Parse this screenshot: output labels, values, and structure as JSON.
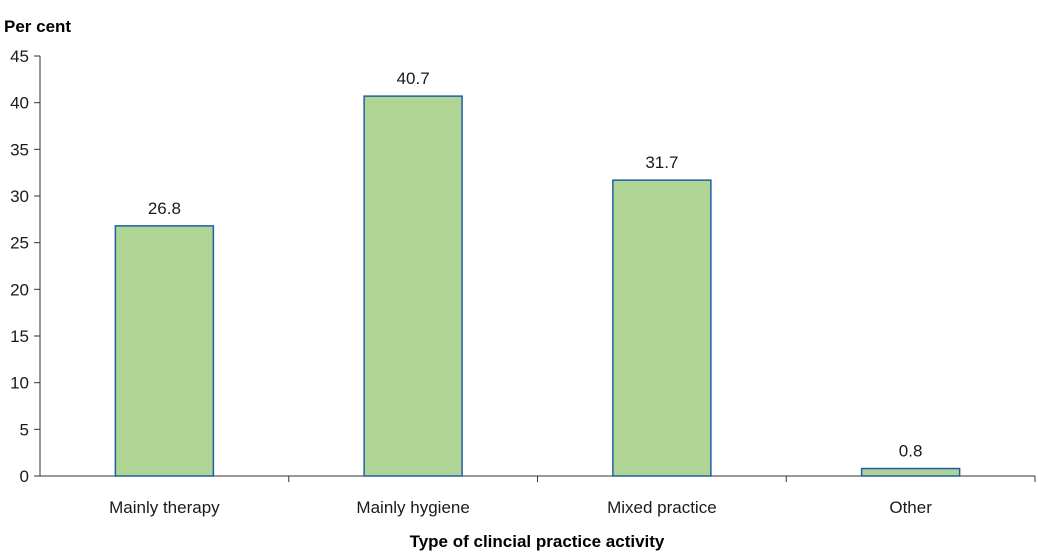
{
  "chart_data": {
    "type": "bar",
    "title": "",
    "ylabel": "Per cent",
    "xlabel": "Type of clincial practice activity",
    "categories": [
      "Mainly therapy",
      "Mainly hygiene",
      "Mixed practice",
      "Other"
    ],
    "values": [
      26.8,
      40.7,
      31.7,
      0.8
    ],
    "value_labels": [
      "26.8",
      "40.7",
      "31.7",
      "0.8"
    ],
    "ylim": [
      0,
      45
    ],
    "yticks": [
      0,
      5,
      10,
      15,
      20,
      25,
      30,
      35,
      40,
      45
    ],
    "grid": false,
    "legend": "none",
    "colors": {
      "bar_fill": "#b0d494",
      "bar_stroke": "#1f5fa8",
      "axis": "#333333"
    }
  }
}
